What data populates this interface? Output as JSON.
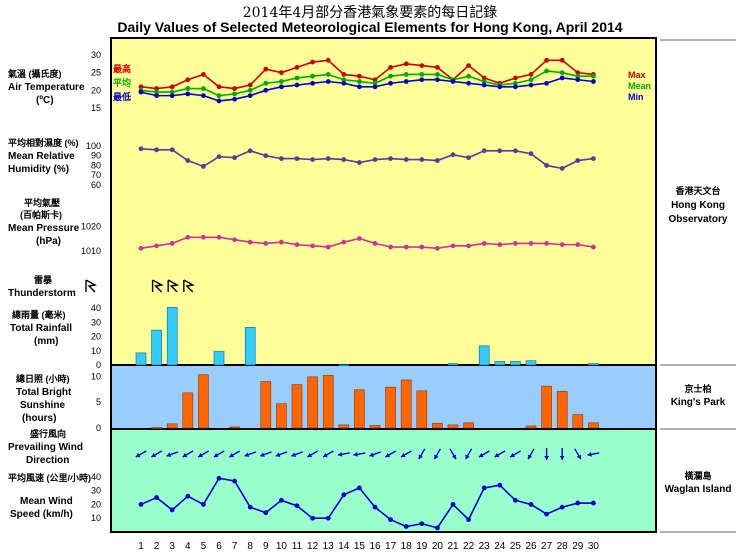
{
  "title_zh": "2014年4月部分香港氣象要素的每日記錄",
  "title_en": "Daily Values of Selected Meteorological Elements for Hong Kong, April 2014",
  "labels": {
    "temp_zh": "氣溫 (攝氏度)",
    "temp_en": "Air Temperature",
    "temp_unit": "(ºC)",
    "temp_max_zh": "最高",
    "temp_mean_zh": "平均",
    "temp_min_zh": "最低",
    "temp_max_en": "Max",
    "temp_mean_en": "Mean",
    "temp_min_en": "Min",
    "rh_zh": "平均相對濕度 (%)",
    "rh_en1": "Mean Relative",
    "rh_en2": "Humidity (%)",
    "pres_zh1": "平均氣壓",
    "pres_zh2": "(百帕斯卡)",
    "pres_en1": "Mean Pressure",
    "pres_en2": "(hPa)",
    "ts_zh": "雷暴",
    "ts_en": "Thunderstorm",
    "rain_zh": "總雨量 (毫米)",
    "rain_en1": "Total Rainfall",
    "rain_en2": "(mm)",
    "sun_zh": "總日照 (小時)",
    "sun_en1": "Total Bright",
    "sun_en2": "Sunshine",
    "sun_en3": "(hours)",
    "wdir_zh": "盛行風向",
    "wdir_en1": "Prevailing Wind",
    "wdir_en2": "Direction",
    "wspd_zh": "平均風速 (公里/小時)",
    "wspd_en1": "Mean Wind",
    "wspd_en2": "Speed (km/h)",
    "stn1_zh": "香港天文台",
    "stn1_en1": "Hong Kong",
    "stn1_en2": "Observatory",
    "stn2_zh": "京士柏",
    "stn2_en": "King's Park",
    "stn3_zh": "橫瀾島",
    "stn3_en": "Waglan Island"
  },
  "colors": {
    "panel_yellow": "#ffff99",
    "panel_blue": "#99ccff",
    "panel_green": "#99ffcc",
    "max": "#cc0000",
    "mean": "#00aa00",
    "min": "#0000cc",
    "rh": "#663399",
    "pressure": "#cc3399",
    "rain": "#33ccff",
    "sun": "#ff6600",
    "wind": "#0000cc"
  },
  "chart_data": [
    {
      "type": "line",
      "title": "Air Temperature",
      "x": [
        1,
        2,
        3,
        4,
        5,
        6,
        7,
        8,
        9,
        10,
        11,
        12,
        13,
        14,
        15,
        16,
        17,
        18,
        19,
        20,
        21,
        22,
        23,
        24,
        25,
        26,
        27,
        28,
        29,
        30
      ],
      "ylim": [
        15,
        30
      ],
      "yticks": [
        15,
        20,
        25,
        30
      ],
      "series": [
        {
          "name": "Max",
          "values": [
            21.0,
            20.5,
            21.0,
            23.0,
            24.5,
            21.0,
            20.5,
            21.5,
            26.0,
            25.0,
            26.5,
            28.0,
            28.5,
            24.5,
            24.0,
            23.0,
            26.5,
            27.5,
            27.0,
            26.5,
            23.0,
            27.0,
            23.5,
            22.0,
            23.5,
            24.5,
            28.5,
            28.5,
            25.0,
            24.5
          ]
        },
        {
          "name": "Mean",
          "values": [
            20.0,
            19.5,
            19.5,
            20.5,
            20.5,
            18.5,
            19.0,
            20.0,
            22.0,
            22.5,
            23.5,
            24.0,
            24.5,
            23.0,
            22.5,
            22.0,
            24.0,
            24.5,
            24.5,
            24.5,
            23.0,
            24.0,
            22.5,
            21.5,
            22.0,
            23.0,
            25.5,
            25.0,
            24.0,
            24.0
          ]
        },
        {
          "name": "Min",
          "values": [
            19.5,
            18.5,
            18.5,
            19.0,
            18.5,
            17.0,
            17.5,
            18.5,
            20.0,
            21.0,
            21.5,
            22.0,
            22.5,
            22.0,
            21.0,
            21.0,
            22.0,
            22.5,
            23.0,
            23.0,
            22.5,
            22.0,
            21.5,
            21.0,
            21.0,
            21.5,
            22.0,
            23.5,
            23.0,
            22.5
          ]
        }
      ]
    },
    {
      "type": "line",
      "title": "Mean Relative Humidity",
      "x": [
        1,
        2,
        3,
        4,
        5,
        6,
        7,
        8,
        9,
        10,
        11,
        12,
        13,
        14,
        15,
        16,
        17,
        18,
        19,
        20,
        21,
        22,
        23,
        24,
        25,
        26,
        27,
        28,
        29,
        30
      ],
      "ylim": [
        60,
        105
      ],
      "yticks": [
        60,
        70,
        80,
        90,
        100
      ],
      "series": [
        {
          "name": "",
          "values": [
            97,
            96,
            96,
            85,
            79,
            89,
            88,
            95,
            90,
            87,
            87,
            86,
            87,
            86,
            83,
            86,
            87,
            86,
            86,
            85,
            91,
            88,
            95,
            95,
            95,
            92,
            80,
            77,
            85,
            87
          ]
        }
      ]
    },
    {
      "type": "line",
      "title": "Mean Pressure",
      "x": [
        1,
        2,
        3,
        4,
        5,
        6,
        7,
        8,
        9,
        10,
        11,
        12,
        13,
        14,
        15,
        16,
        17,
        18,
        19,
        20,
        21,
        22,
        23,
        24,
        25,
        26,
        27,
        28,
        29,
        30
      ],
      "ylim": [
        1005,
        1025
      ],
      "yticks": [
        1010,
        1020
      ],
      "series": [
        {
          "name": "",
          "values": [
            1011.0,
            1012.0,
            1013.0,
            1015.5,
            1015.5,
            1015.5,
            1014.5,
            1013.5,
            1013.0,
            1013.5,
            1012.5,
            1012.0,
            1011.5,
            1013.5,
            1015.0,
            1013.0,
            1011.5,
            1011.5,
            1011.5,
            1011.0,
            1012.0,
            1012.0,
            1013.0,
            1012.5,
            1013.0,
            1013.0,
            1013.0,
            1012.5,
            1012.5,
            1011.5
          ]
        }
      ]
    },
    {
      "type": "table",
      "title": "Thunderstorm",
      "x": [
        1,
        2,
        3,
        4,
        5,
        6,
        7,
        8,
        9,
        10,
        11,
        12,
        13,
        14,
        15,
        16,
        17,
        18,
        19,
        20,
        21,
        22,
        23,
        24,
        25,
        26,
        27,
        28,
        29,
        30
      ],
      "values": [
        0,
        1,
        1,
        1,
        0,
        0,
        0,
        0,
        0,
        0,
        0,
        0,
        0,
        0,
        0,
        0,
        0,
        0,
        0,
        0,
        0,
        0,
        0,
        0,
        0,
        0,
        0,
        0,
        0,
        0
      ]
    },
    {
      "type": "bar",
      "title": "Total Rainfall",
      "categories": [
        1,
        2,
        3,
        4,
        5,
        6,
        7,
        8,
        9,
        10,
        11,
        12,
        13,
        14,
        15,
        16,
        17,
        18,
        19,
        20,
        21,
        22,
        23,
        24,
        25,
        26,
        27,
        28,
        29,
        30
      ],
      "ylim": [
        0,
        45
      ],
      "yticks": [
        0,
        10,
        20,
        30,
        40
      ],
      "values": [
        8.5,
        24.5,
        40.5,
        0,
        0,
        9.5,
        0,
        26.5,
        0,
        0,
        0,
        0,
        0,
        0.3,
        0,
        0,
        0,
        0,
        0,
        0,
        1.0,
        0,
        13.5,
        2.5,
        2.5,
        3.0,
        0,
        0,
        0,
        1.0
      ]
    },
    {
      "type": "bar",
      "title": "Total Bright Sunshine",
      "categories": [
        1,
        2,
        3,
        4,
        5,
        6,
        7,
        8,
        9,
        10,
        11,
        12,
        13,
        14,
        15,
        16,
        17,
        18,
        19,
        20,
        21,
        22,
        23,
        24,
        25,
        26,
        27,
        28,
        29,
        30
      ],
      "ylim": [
        0,
        12
      ],
      "yticks": [
        0,
        5,
        10
      ],
      "values": [
        0,
        0.1,
        0.8,
        6.8,
        10.3,
        0,
        0.2,
        0,
        9.0,
        4.7,
        8.4,
        9.9,
        10.2,
        0.6,
        7.4,
        0.5,
        7.9,
        9.3,
        7.2,
        0.9,
        0.6,
        1.0,
        0,
        0,
        0,
        0.4,
        8.1,
        7.1,
        2.6,
        1.0
      ]
    },
    {
      "type": "scatter",
      "title": "Prevailing Wind Direction",
      "x": [
        1,
        2,
        3,
        4,
        5,
        6,
        7,
        8,
        9,
        10,
        11,
        12,
        13,
        14,
        15,
        16,
        17,
        18,
        19,
        20,
        21,
        22,
        23,
        24,
        25,
        26,
        27,
        28,
        29,
        30
      ],
      "values": [
        60,
        60,
        70,
        60,
        60,
        60,
        60,
        70,
        70,
        70,
        70,
        60,
        60,
        80,
        80,
        70,
        60,
        60,
        30,
        30,
        330,
        30,
        60,
        60,
        60,
        30,
        360,
        360,
        330,
        80
      ]
    },
    {
      "type": "line",
      "title": "Mean Wind Speed",
      "x": [
        1,
        2,
        3,
        4,
        5,
        6,
        7,
        8,
        9,
        10,
        11,
        12,
        13,
        14,
        15,
        16,
        17,
        18,
        19,
        20,
        21,
        22,
        23,
        24,
        25,
        26,
        27,
        28,
        29,
        30
      ],
      "ylim": [
        0,
        45
      ],
      "yticks": [
        10,
        20,
        30,
        40
      ],
      "series": [
        {
          "name": "",
          "values": [
            20,
            25,
            16,
            26,
            20,
            39,
            37,
            18,
            14,
            23,
            19,
            10,
            10,
            27,
            32,
            18,
            9,
            4,
            6,
            3,
            20,
            9,
            32,
            34,
            23,
            20,
            13,
            18,
            21,
            21
          ]
        }
      ]
    }
  ]
}
